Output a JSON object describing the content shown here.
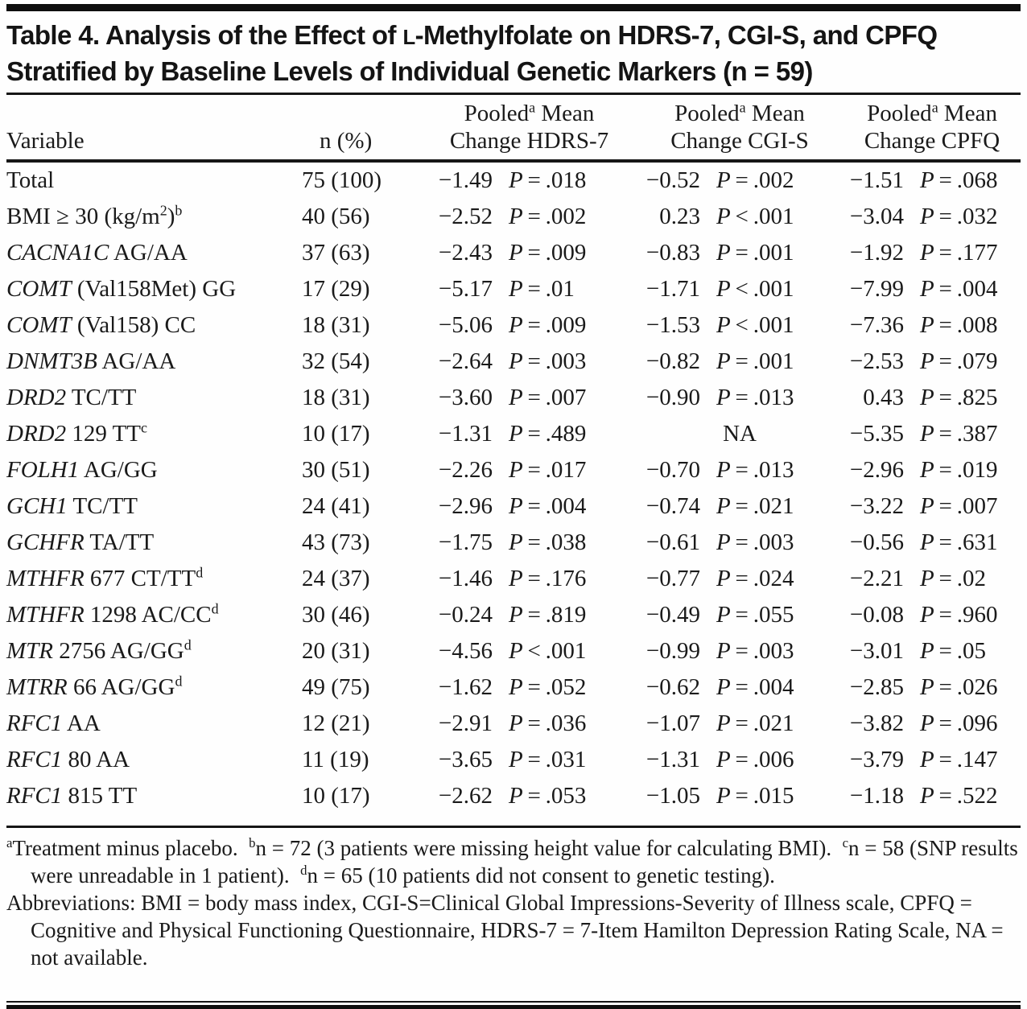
{
  "colors": {
    "text": "#1a1a1a",
    "rule": "#161616",
    "background": "#fefefe"
  },
  "p_label": "P",
  "title": {
    "line1_pre": "Table 4. Analysis of the Effect of ",
    "line1_smallcap": "L",
    "line1_post": "-Methylfolate on HDRS-7, CGI-S, and CPFQ",
    "line2": "Stratified by Baseline Levels of Individual Genetic Markers (n = 59)"
  },
  "header": {
    "variable": "Variable",
    "n": "n (%)",
    "groups": [
      {
        "top_pre": "Pooled",
        "top_sup": "a",
        "top_post": " Mean",
        "bottom": "Change HDRS-7"
      },
      {
        "top_pre": "Pooled",
        "top_sup": "a",
        "top_post": " Mean",
        "bottom": "Change CGI-S"
      },
      {
        "top_pre": "Pooled",
        "top_sup": "a",
        "top_post": " Mean",
        "bottom": "Change CPFQ"
      }
    ]
  },
  "rows": [
    {
      "variable": [
        {
          "s": "",
          "t": "Total"
        }
      ],
      "n": "75 (100)",
      "hdrs": {
        "value": "−1.49",
        "p_op": "=",
        "p_val": ".018"
      },
      "cgis": {
        "value": "−0.52",
        "p_op": "=",
        "p_val": ".002"
      },
      "cpfq": {
        "value": "−1.51",
        "p_op": "=",
        "p_val": ".068"
      }
    },
    {
      "variable": [
        {
          "s": "",
          "t": "BMI ≥ 30 (kg/m"
        },
        {
          "s": "sup",
          "t": "2"
        },
        {
          "s": "",
          "t": ")"
        },
        {
          "s": "sup",
          "t": "b"
        }
      ],
      "n": "40 (56)",
      "hdrs": {
        "value": "−2.52",
        "p_op": "=",
        "p_val": ".002"
      },
      "cgis": {
        "value": "0.23",
        "p_op": "<",
        "p_val": ".001"
      },
      "cpfq": {
        "value": "−3.04",
        "p_op": "=",
        "p_val": ".032"
      }
    },
    {
      "variable": [
        {
          "s": "i",
          "t": "CACNA1C"
        },
        {
          "s": "",
          "t": " AG/AA"
        }
      ],
      "n": "37 (63)",
      "hdrs": {
        "value": "−2.43",
        "p_op": "=",
        "p_val": ".009"
      },
      "cgis": {
        "value": "−0.83",
        "p_op": "=",
        "p_val": ".001"
      },
      "cpfq": {
        "value": "−1.92",
        "p_op": "=",
        "p_val": ".177"
      }
    },
    {
      "variable": [
        {
          "s": "i",
          "t": "COMT"
        },
        {
          "s": "",
          "t": " (Val158Met) GG"
        }
      ],
      "n": "17 (29)",
      "hdrs": {
        "value": "−5.17",
        "p_op": "=",
        "p_val": ".01"
      },
      "cgis": {
        "value": "−1.71",
        "p_op": "<",
        "p_val": ".001"
      },
      "cpfq": {
        "value": "−7.99",
        "p_op": "=",
        "p_val": ".004"
      }
    },
    {
      "variable": [
        {
          "s": "i",
          "t": "COMT"
        },
        {
          "s": "",
          "t": " (Val158) CC"
        }
      ],
      "n": "18 (31)",
      "hdrs": {
        "value": "−5.06",
        "p_op": "=",
        "p_val": ".009"
      },
      "cgis": {
        "value": "−1.53",
        "p_op": "<",
        "p_val": ".001"
      },
      "cpfq": {
        "value": "−7.36",
        "p_op": "=",
        "p_val": ".008"
      }
    },
    {
      "variable": [
        {
          "s": "i",
          "t": "DNMT3B"
        },
        {
          "s": "",
          "t": " AG/AA"
        }
      ],
      "n": "32 (54)",
      "hdrs": {
        "value": "−2.64",
        "p_op": "=",
        "p_val": ".003"
      },
      "cgis": {
        "value": "−0.82",
        "p_op": "=",
        "p_val": ".001"
      },
      "cpfq": {
        "value": "−2.53",
        "p_op": "=",
        "p_val": ".079"
      }
    },
    {
      "variable": [
        {
          "s": "i",
          "t": "DRD2"
        },
        {
          "s": "",
          "t": " TC/TT"
        }
      ],
      "n": "18 (31)",
      "hdrs": {
        "value": "−3.60",
        "p_op": "=",
        "p_val": ".007"
      },
      "cgis": {
        "value": "−0.90",
        "p_op": "=",
        "p_val": ".013"
      },
      "cpfq": {
        "value": "0.43",
        "p_op": "=",
        "p_val": ".825"
      }
    },
    {
      "variable": [
        {
          "s": "i",
          "t": "DRD2"
        },
        {
          "s": "",
          "t": " 129 TT"
        },
        {
          "s": "sup",
          "t": "c"
        }
      ],
      "n": "10 (17)",
      "hdrs": {
        "value": "−1.31",
        "p_op": "=",
        "p_val": ".489"
      },
      "cgis": {
        "na": "NA"
      },
      "cpfq": {
        "value": "−5.35",
        "p_op": "=",
        "p_val": ".387"
      }
    },
    {
      "variable": [
        {
          "s": "i",
          "t": "FOLH1"
        },
        {
          "s": "",
          "t": " AG/GG"
        }
      ],
      "n": "30 (51)",
      "hdrs": {
        "value": "−2.26",
        "p_op": "=",
        "p_val": ".017"
      },
      "cgis": {
        "value": "−0.70",
        "p_op": "=",
        "p_val": ".013"
      },
      "cpfq": {
        "value": "−2.96",
        "p_op": "=",
        "p_val": ".019"
      }
    },
    {
      "variable": [
        {
          "s": "i",
          "t": "GCH1"
        },
        {
          "s": "",
          "t": " TC/TT"
        }
      ],
      "n": "24 (41)",
      "hdrs": {
        "value": "−2.96",
        "p_op": "=",
        "p_val": ".004"
      },
      "cgis": {
        "value": "−0.74",
        "p_op": "=",
        "p_val": ".021"
      },
      "cpfq": {
        "value": "−3.22",
        "p_op": "=",
        "p_val": ".007"
      }
    },
    {
      "variable": [
        {
          "s": "i",
          "t": "GCHFR"
        },
        {
          "s": "",
          "t": " TA/TT"
        }
      ],
      "n": "43 (73)",
      "hdrs": {
        "value": "−1.75",
        "p_op": "=",
        "p_val": ".038"
      },
      "cgis": {
        "value": "−0.61",
        "p_op": "=",
        "p_val": ".003"
      },
      "cpfq": {
        "value": "−0.56",
        "p_op": "=",
        "p_val": ".631"
      }
    },
    {
      "variable": [
        {
          "s": "i",
          "t": "MTHFR"
        },
        {
          "s": "",
          "t": " 677 CT/TT"
        },
        {
          "s": "sup",
          "t": "d"
        }
      ],
      "n": "24 (37)",
      "hdrs": {
        "value": "−1.46",
        "p_op": "=",
        "p_val": ".176"
      },
      "cgis": {
        "value": "−0.77",
        "p_op": "=",
        "p_val": ".024"
      },
      "cpfq": {
        "value": "−2.21",
        "p_op": "=",
        "p_val": ".02"
      }
    },
    {
      "variable": [
        {
          "s": "i",
          "t": "MTHFR"
        },
        {
          "s": "",
          "t": " 1298 AC/CC"
        },
        {
          "s": "sup",
          "t": "d"
        }
      ],
      "n": "30 (46)",
      "hdrs": {
        "value": "−0.24",
        "p_op": "=",
        "p_val": ".819"
      },
      "cgis": {
        "value": "−0.49",
        "p_op": "=",
        "p_val": ".055"
      },
      "cpfq": {
        "value": "−0.08",
        "p_op": "=",
        "p_val": ".960"
      }
    },
    {
      "variable": [
        {
          "s": "i",
          "t": "MTR"
        },
        {
          "s": "",
          "t": " 2756 AG/GG"
        },
        {
          "s": "sup",
          "t": "d"
        }
      ],
      "n": "20 (31)",
      "hdrs": {
        "value": "−4.56",
        "p_op": "<",
        "p_val": ".001"
      },
      "cgis": {
        "value": "−0.99",
        "p_op": "=",
        "p_val": ".003"
      },
      "cpfq": {
        "value": "−3.01",
        "p_op": "=",
        "p_val": ".05"
      }
    },
    {
      "variable": [
        {
          "s": "i",
          "t": "MTRR"
        },
        {
          "s": "",
          "t": " 66 AG/GG"
        },
        {
          "s": "sup",
          "t": "d"
        }
      ],
      "n": "49 (75)",
      "hdrs": {
        "value": "−1.62",
        "p_op": "=",
        "p_val": ".052"
      },
      "cgis": {
        "value": "−0.62",
        "p_op": "=",
        "p_val": ".004"
      },
      "cpfq": {
        "value": "−2.85",
        "p_op": "=",
        "p_val": ".026"
      }
    },
    {
      "variable": [
        {
          "s": "i",
          "t": "RFC1"
        },
        {
          "s": "",
          "t": " AA"
        }
      ],
      "n": "12 (21)",
      "hdrs": {
        "value": "−2.91",
        "p_op": "=",
        "p_val": ".036"
      },
      "cgis": {
        "value": "−1.07",
        "p_op": "=",
        "p_val": ".021"
      },
      "cpfq": {
        "value": "−3.82",
        "p_op": "=",
        "p_val": ".096"
      }
    },
    {
      "variable": [
        {
          "s": "i",
          "t": "RFC1"
        },
        {
          "s": "",
          "t": " 80 AA"
        }
      ],
      "n": "11 (19)",
      "hdrs": {
        "value": "−3.65",
        "p_op": "=",
        "p_val": ".031"
      },
      "cgis": {
        "value": "−1.31",
        "p_op": "=",
        "p_val": ".006"
      },
      "cpfq": {
        "value": "−3.79",
        "p_op": "=",
        "p_val": ".147"
      }
    },
    {
      "variable": [
        {
          "s": "i",
          "t": "RFC1"
        },
        {
          "s": "",
          "t": " 815 TT"
        }
      ],
      "n": "10 (17)",
      "hdrs": {
        "value": "−2.62",
        "p_op": "=",
        "p_val": ".053"
      },
      "cgis": {
        "value": "−1.05",
        "p_op": "=",
        "p_val": ".015"
      },
      "cpfq": {
        "value": "−1.18",
        "p_op": "=",
        "p_val": ".522"
      }
    }
  ],
  "footnotes": [
    {
      "sup": "a",
      "text": "Treatment minus placebo."
    },
    {
      "sup": "b",
      "text": "n = 72 (3 patients were missing height value for calculating BMI)."
    },
    {
      "sup": "c",
      "text": "n = 58 (SNP results were unreadable in 1 patient)."
    },
    {
      "sup": "d",
      "text": "n = 65 (10 patients did not consent to genetic testing)."
    }
  ],
  "abbreviations": "Abbreviations: BMI = body mass index, CGI-S=Clinical Global Impressions-Severity of Illness scale, CPFQ = Cognitive and Physical Functioning Questionnaire, HDRS-7 = 7-Item Hamilton Depression Rating Scale, NA = not available."
}
